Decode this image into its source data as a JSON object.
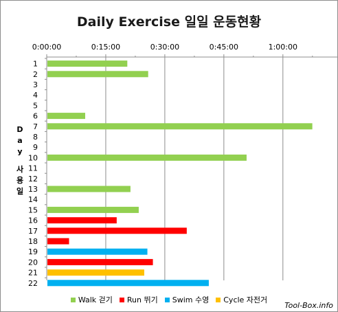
{
  "chart_data": {
    "type": "bar",
    "orientation": "horizontal",
    "title": "Daily Exercise 일일 운동현황",
    "ylabel": "Day 사용일",
    "xlim_minutes": [
      0,
      75
    ],
    "xticks": [
      "0:00:00",
      "0:15:00",
      "0:30:00",
      "0:45:00",
      "1:00:00"
    ],
    "xtick_values_minutes": [
      0,
      15,
      30,
      45,
      60
    ],
    "grid": true,
    "legend_position": "bottom",
    "categories": [
      "1",
      "2",
      "3",
      "4",
      "5",
      "6",
      "7",
      "8",
      "9",
      "10",
      "11",
      "12",
      "13",
      "14",
      "15",
      "16",
      "17",
      "18",
      "19",
      "20",
      "21",
      "22"
    ],
    "series": [
      {
        "name": "Walk 걷기",
        "color": "#92d050",
        "values": [
          20.3,
          25.6,
          null,
          null,
          null,
          9.6,
          67.3,
          null,
          null,
          50.6,
          null,
          null,
          21.1,
          null,
          23.2,
          null,
          null,
          null,
          null,
          null,
          null,
          null
        ]
      },
      {
        "name": "Run 뛰기",
        "color": "#ff0000",
        "values": [
          null,
          null,
          null,
          null,
          null,
          null,
          null,
          null,
          null,
          null,
          null,
          null,
          null,
          null,
          null,
          17.6,
          35.4,
          5.5,
          null,
          26.8,
          null,
          null
        ]
      },
      {
        "name": "Swim 수영",
        "color": "#00b0f0",
        "values": [
          null,
          null,
          null,
          null,
          null,
          null,
          null,
          null,
          null,
          null,
          null,
          null,
          null,
          null,
          null,
          null,
          null,
          null,
          25.4,
          null,
          null,
          41.0
        ]
      },
      {
        "name": "Cycle 자전거",
        "color": "#ffc000",
        "values": [
          null,
          null,
          null,
          null,
          null,
          null,
          null,
          null,
          null,
          null,
          null,
          null,
          null,
          null,
          null,
          null,
          null,
          null,
          null,
          null,
          24.6,
          null
        ]
      }
    ]
  },
  "ylabel_chars": [
    "D",
    "a",
    "y",
    "",
    "사",
    "용",
    "일"
  ],
  "watermark": "Tool-Box.info"
}
